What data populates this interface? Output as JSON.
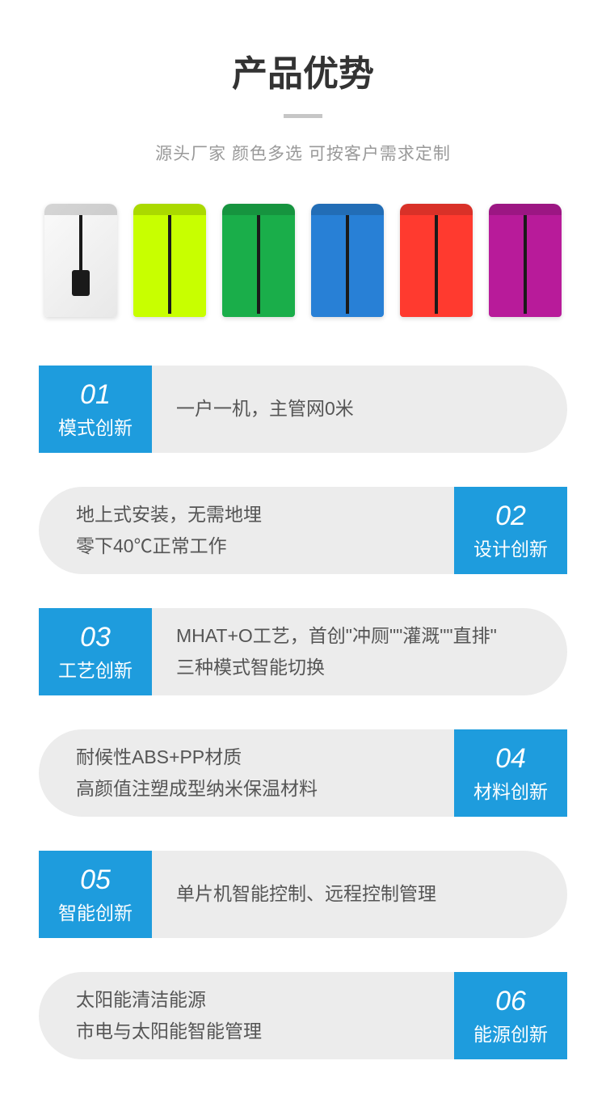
{
  "header": {
    "title": "产品优势",
    "subtitle": "源头厂家 颜色多选 可按客户需求定制"
  },
  "products": {
    "colors": [
      "#f2f2f2",
      "#c8ff00",
      "#1aae4a",
      "#2880d6",
      "#ff3a2f",
      "#b81b9a"
    ]
  },
  "features": [
    {
      "number": "01",
      "label": "模式创新",
      "align": "left",
      "lines": [
        "一户一机，主管网0米"
      ]
    },
    {
      "number": "02",
      "label": "设计创新",
      "align": "right",
      "lines": [
        "地上式安装，无需地埋",
        "零下40℃正常工作"
      ]
    },
    {
      "number": "03",
      "label": "工艺创新",
      "align": "left",
      "lines": [
        "MHAT+O工艺，首创\"冲厕\"\"灌溉\"\"直排\"",
        "三种模式智能切换"
      ]
    },
    {
      "number": "04",
      "label": "材料创新",
      "align": "right",
      "lines": [
        "耐候性ABS+PP材质",
        "高颜值注塑成型纳米保温材料"
      ]
    },
    {
      "number": "05",
      "label": "智能创新",
      "align": "left",
      "lines": [
        "单片机智能控制、远程控制管理"
      ]
    },
    {
      "number": "06",
      "label": "能源创新",
      "align": "right",
      "lines": [
        "太阳能清洁能源",
        "市电与太阳能智能管理"
      ]
    }
  ],
  "styling": {
    "badge_bg": "#1e9cdd",
    "content_bg": "#ececec",
    "title_color": "#333333",
    "subtitle_color": "#999999",
    "content_text_color": "#555555",
    "divider_color": "#c6c6c6"
  }
}
